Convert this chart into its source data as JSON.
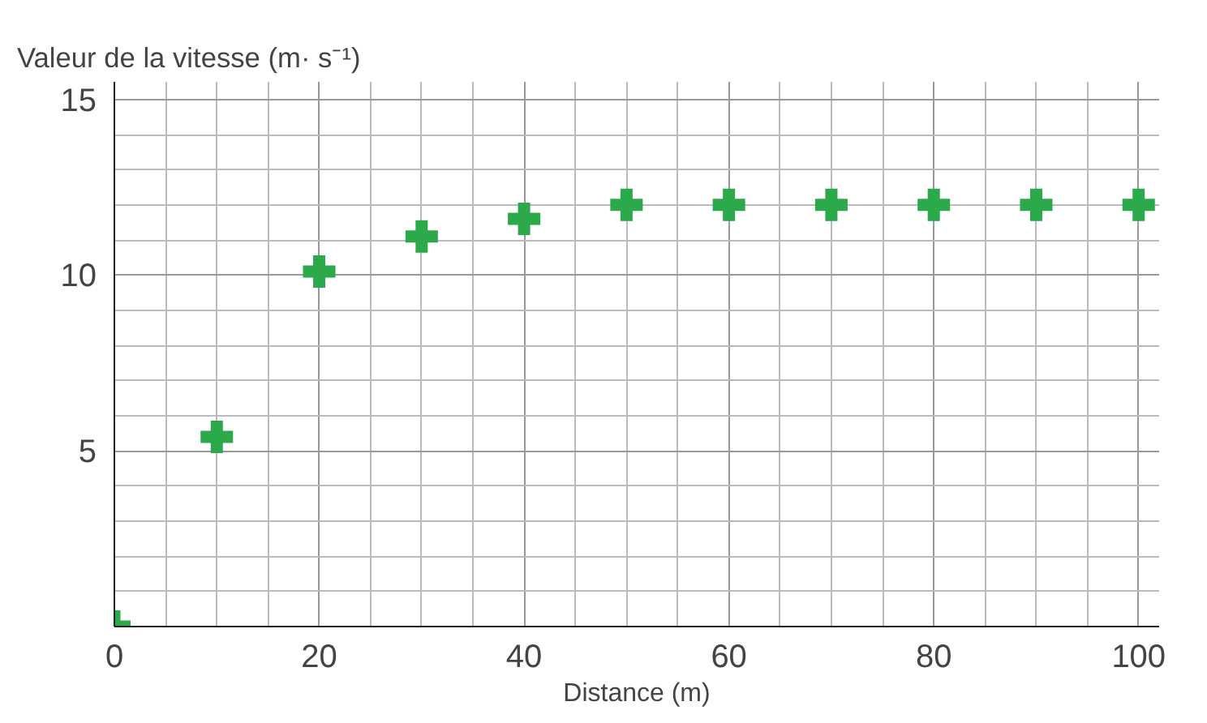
{
  "chart_data": {
    "type": "scatter",
    "ylabel": "Valeur de la vitesse (m· s⁻¹)",
    "xlabel": "Distance (m)",
    "x": [
      0,
      10,
      20,
      30,
      40,
      50,
      60,
      70,
      80,
      90,
      100
    ],
    "series": [
      {
        "color": "#2ca94a",
        "values": [
          0,
          5.4,
          10.1,
          11.1,
          11.6,
          12.0,
          12.0,
          12.0,
          12.0,
          12.0,
          12.0
        ]
      }
    ],
    "xlim": [
      0,
      102
    ],
    "ylim": [
      0,
      15.5
    ],
    "xticks": [
      0,
      20,
      40,
      60,
      80,
      100
    ],
    "yticks": [
      {
        "value": 0,
        "label": null
      },
      5,
      10,
      15
    ],
    "grid": true,
    "marker": "cross"
  }
}
